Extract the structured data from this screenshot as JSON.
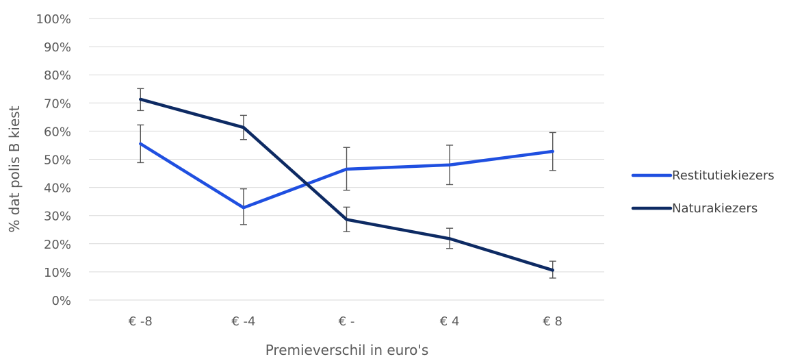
{
  "chart_data": {
    "type": "line",
    "categories": [
      "€ -8",
      "€ -4",
      "€ -",
      "€ 4",
      "€ 8"
    ],
    "xlabel": "Premieverschil in euro's",
    "ylabel": "% dat polis B kiest",
    "ylim": [
      0,
      100
    ],
    "yticks": [
      "0%",
      "10%",
      "20%",
      "30%",
      "40%",
      "50%",
      "60%",
      "70%",
      "80%",
      "90%",
      "100%"
    ],
    "grid": true,
    "legend_position": "right",
    "series": [
      {
        "name": "Restitutiekiezers",
        "color": "#1f4fe0",
        "values": [
          55.5,
          32.8,
          46.5,
          48.0,
          52.8
        ],
        "error_low": [
          48.8,
          26.8,
          39.0,
          41.0,
          46.0
        ],
        "error_high": [
          62.2,
          39.5,
          54.2,
          55.0,
          59.5
        ]
      },
      {
        "name": "Naturakiezers",
        "color": "#0d2a63",
        "values": [
          71.3,
          61.3,
          28.6,
          21.8,
          10.6
        ],
        "error_low": [
          67.3,
          57.0,
          24.3,
          18.3,
          7.8
        ],
        "error_high": [
          75.1,
          65.6,
          33.0,
          25.5,
          13.8
        ]
      }
    ]
  }
}
